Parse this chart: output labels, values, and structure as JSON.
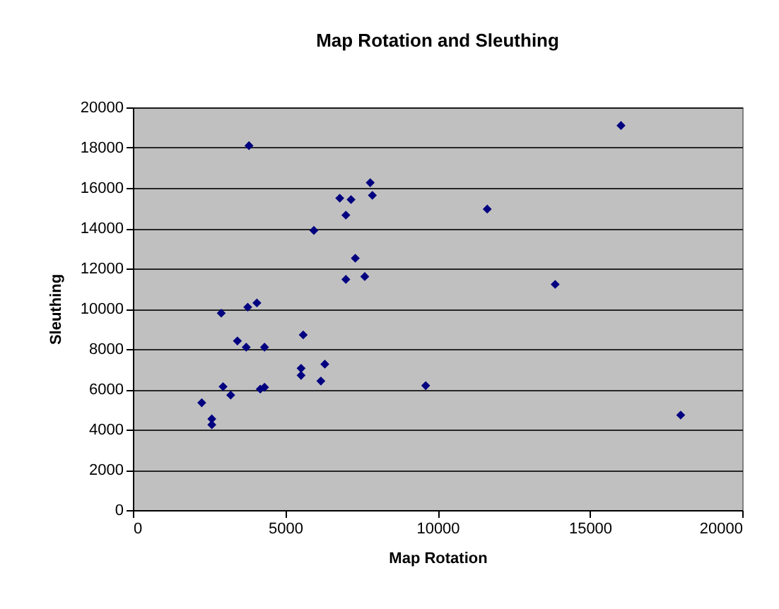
{
  "chart_data": {
    "type": "scatter",
    "title": "Map Rotation and Sleuthing",
    "xlabel": "Map Rotation",
    "ylabel": "Sleuthing",
    "x": [
      3810,
      7790,
      7860,
      6790,
      7160,
      6990,
      5940,
      7300,
      6990,
      7610,
      2900,
      3770,
      4070,
      5590,
      3430,
      3720,
      4320,
      5520,
      5520,
      6300,
      6170,
      2960,
      3210,
      4180,
      4320,
      2260,
      9610,
      2590,
      2590,
      11630,
      13860,
      17980,
      16020
    ],
    "series": [
      {
        "color": "#000080",
        "values": [
          18100,
          16260,
          15630,
          15490,
          15420,
          14650,
          13890,
          12510,
          11460,
          11600,
          9780,
          10080,
          10290,
          8700,
          8400,
          8090,
          8090,
          7040,
          6690,
          7250,
          6410,
          6130,
          5710,
          6010,
          6100,
          5330,
          6180,
          4530,
          4240,
          14950,
          11210,
          4720,
          19100
        ]
      }
    ],
    "xlim": [
      0,
      20000
    ],
    "xticks": [
      0,
      5000,
      10000,
      15000,
      20000
    ],
    "ylim": [
      0,
      20000
    ],
    "yticks": [
      0,
      2000,
      4000,
      6000,
      8000,
      10000,
      12000,
      14000,
      16000,
      18000,
      20000
    ],
    "grid": "y",
    "marker": "diamond",
    "legend": false
  }
}
